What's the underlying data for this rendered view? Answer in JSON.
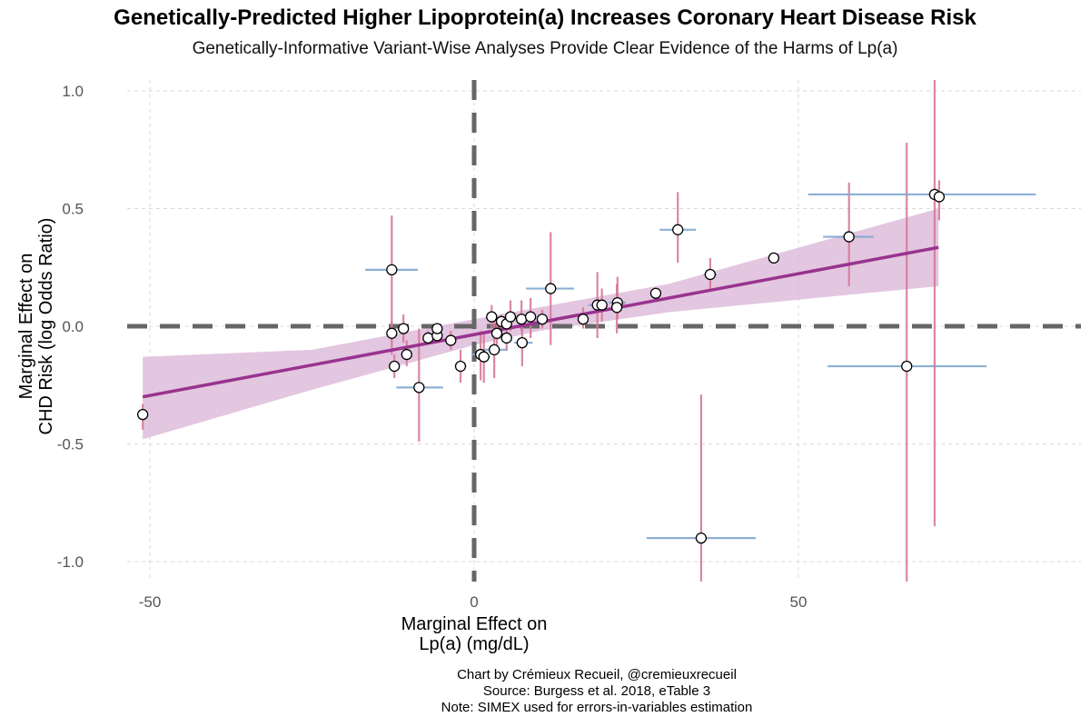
{
  "chart_data": {
    "type": "scatter",
    "title": "Genetically-Predicted Higher Lipoprotein(a) Increases Coronary Heart Disease Risk",
    "subtitle": "Genetically-Informative Variant-Wise Analyses Provide Clear Evidence of the Harms of Lp(a)",
    "xlabel": [
      "Marginal Effect on",
      "Lp(a) (mg/dL)"
    ],
    "ylabel": [
      "Marginal Effect on",
      "CHD Risk (log Odds Ratio)"
    ],
    "caption": [
      "Chart by Crémieux Recueil, @cremieuxrecueil",
      "Source: Burgess et al. 2018, eTable 3",
      "Note: SIMEX used for errors-in-variables estimation"
    ],
    "xlim": [
      -52,
      93
    ],
    "ylim": [
      -1.1,
      1.05
    ],
    "xticks": [
      -50,
      0,
      50
    ],
    "xtick_labels": [
      "-50",
      "0",
      "50"
    ],
    "yticks": [
      1.0,
      0.5,
      0.0,
      -0.5,
      -1.0
    ],
    "ytick_labels": [
      "1.0",
      "0.5",
      "0.0",
      "-0.5",
      "-1.0"
    ],
    "grid": true,
    "reference_lines": {
      "x": 0,
      "y": 0
    },
    "colors": {
      "point_fill": "#ffffff",
      "point_stroke": "#000000",
      "y_error": "#d67a9b",
      "x_error": "#7fa8d0",
      "fit_line": "#99338f",
      "ci_band": "#d9b3d6",
      "ref_line": "#666666",
      "grid": "#d9d9d9"
    },
    "fit": {
      "x": [
        -51.1,
        71.6
      ],
      "y": [
        -0.3,
        0.335
      ]
    },
    "ci_band": {
      "x": [
        -51.1,
        -25,
        0,
        10,
        30,
        71.6
      ],
      "lower": [
        -0.48,
        -0.27,
        -0.08,
        -0.02,
        0.06,
        0.17
      ],
      "upper": [
        -0.13,
        -0.1,
        0.03,
        0.08,
        0.18,
        0.5
      ]
    },
    "points": [
      {
        "x": -51.1,
        "y": -0.375,
        "ylo": -0.44,
        "yhi": -0.33,
        "xlo": -51.6,
        "xhi": -50.6
      },
      {
        "x": -12.7,
        "y": 0.24,
        "ylo": -0.12,
        "yhi": 0.47,
        "xlo": -16.8,
        "xhi": -8.7
      },
      {
        "x": -12.7,
        "y": -0.03,
        "ylo": -0.07,
        "yhi": 0.02,
        "xlo": -13.5,
        "xhi": -11.9
      },
      {
        "x": -12.3,
        "y": -0.17,
        "ylo": -0.22,
        "yhi": -0.12,
        "xlo": -13.0,
        "xhi": -11.6
      },
      {
        "x": -10.9,
        "y": -0.01,
        "ylo": -0.07,
        "yhi": 0.05,
        "xlo": -11.5,
        "xhi": -10.3
      },
      {
        "x": -10.4,
        "y": -0.12,
        "ylo": -0.17,
        "yhi": -0.06,
        "xlo": -10.9,
        "xhi": -9.9
      },
      {
        "x": -8.5,
        "y": -0.26,
        "ylo": -0.49,
        "yhi": -0.01,
        "xlo": -12.0,
        "xhi": -4.8
      },
      {
        "x": -7.1,
        "y": -0.05,
        "ylo": -0.08,
        "yhi": -0.02,
        "xlo": -7.5,
        "xhi": -6.7
      },
      {
        "x": -5.7,
        "y": -0.04,
        "ylo": -0.07,
        "yhi": -0.01,
        "xlo": -6.1,
        "xhi": -5.3
      },
      {
        "x": -5.7,
        "y": -0.01,
        "ylo": -0.03,
        "yhi": 0.01,
        "xlo": -6.1,
        "xhi": -5.3
      },
      {
        "x": -3.6,
        "y": -0.06,
        "ylo": -0.1,
        "yhi": -0.02,
        "xlo": -4.0,
        "xhi": -3.2
      },
      {
        "x": -2.1,
        "y": -0.17,
        "ylo": -0.24,
        "yhi": -0.1,
        "xlo": -3.0,
        "xhi": -1.2
      },
      {
        "x": 1.0,
        "y": -0.12,
        "ylo": -0.23,
        "yhi": -0.02,
        "xlo": -0.4,
        "xhi": 2.0
      },
      {
        "x": 1.5,
        "y": -0.13,
        "ylo": -0.24,
        "yhi": -0.03,
        "xlo": 0.8,
        "xhi": 2.5
      },
      {
        "x": 3.1,
        "y": -0.1,
        "ylo": -0.22,
        "yhi": 0.02,
        "xlo": 1.5,
        "xhi": 5.2
      },
      {
        "x": 2.7,
        "y": 0.04,
        "ylo": -0.01,
        "yhi": 0.09,
        "xlo": 2.3,
        "xhi": 3.1
      },
      {
        "x": 3.5,
        "y": -0.03,
        "ylo": -0.08,
        "yhi": 0.02,
        "xlo": 3.1,
        "xhi": 3.9
      },
      {
        "x": 4.2,
        "y": 0.02,
        "ylo": -0.02,
        "yhi": 0.05,
        "xlo": 3.6,
        "xhi": 4.8
      },
      {
        "x": 5.0,
        "y": 0.01,
        "ylo": -0.03,
        "yhi": 0.05,
        "xlo": 4.5,
        "xhi": 5.5
      },
      {
        "x": 5.0,
        "y": -0.05,
        "ylo": -0.1,
        "yhi": 0.0,
        "xlo": 4.5,
        "xhi": 5.5
      },
      {
        "x": 5.6,
        "y": 0.04,
        "ylo": -0.02,
        "yhi": 0.11,
        "xlo": 5.0,
        "xhi": 6.2
      },
      {
        "x": 7.3,
        "y": 0.03,
        "ylo": -0.02,
        "yhi": 0.11,
        "xlo": 6.6,
        "xhi": 8.0
      },
      {
        "x": 7.4,
        "y": -0.07,
        "ylo": -0.17,
        "yhi": 0.03,
        "xlo": 6.2,
        "xhi": 9.0
      },
      {
        "x": 8.7,
        "y": 0.04,
        "ylo": -0.05,
        "yhi": 0.12,
        "xlo": 8.0,
        "xhi": 9.6
      },
      {
        "x": 10.5,
        "y": 0.03,
        "ylo": -0.01,
        "yhi": 0.07,
        "xlo": 10.0,
        "xhi": 11.0
      },
      {
        "x": 11.8,
        "y": 0.16,
        "ylo": -0.08,
        "yhi": 0.4,
        "xlo": 8.0,
        "xhi": 15.4
      },
      {
        "x": 16.8,
        "y": 0.03,
        "ylo": -0.01,
        "yhi": 0.08,
        "xlo": 16.2,
        "xhi": 17.4
      },
      {
        "x": 19.0,
        "y": 0.09,
        "ylo": -0.05,
        "yhi": 0.23,
        "xlo": 17.6,
        "xhi": 20.4
      },
      {
        "x": 19.7,
        "y": 0.09,
        "ylo": 0.02,
        "yhi": 0.16,
        "xlo": 19.2,
        "xhi": 20.2
      },
      {
        "x": 22.1,
        "y": 0.1,
        "ylo": 0.03,
        "yhi": 0.21,
        "xlo": 20.8,
        "xhi": 23.4
      },
      {
        "x": 22.0,
        "y": 0.08,
        "ylo": -0.03,
        "yhi": 0.18,
        "xlo": 21.4,
        "xhi": 22.6
      },
      {
        "x": 28.0,
        "y": 0.14,
        "ylo": 0.12,
        "yhi": 0.16,
        "xlo": 27.6,
        "xhi": 28.4
      },
      {
        "x": 31.4,
        "y": 0.41,
        "ylo": 0.27,
        "yhi": 0.57,
        "xlo": 28.6,
        "xhi": 34.2
      },
      {
        "x": 36.4,
        "y": 0.22,
        "ylo": 0.15,
        "yhi": 0.29,
        "xlo": 35.4,
        "xhi": 37.4
      },
      {
        "x": 46.2,
        "y": 0.29,
        "ylo": 0.27,
        "yhi": 0.31,
        "xlo": 45.8,
        "xhi": 46.6
      },
      {
        "x": 57.8,
        "y": 0.38,
        "ylo": 0.17,
        "yhi": 0.61,
        "xlo": 53.8,
        "xhi": 61.6
      },
      {
        "x": 66.7,
        "y": -0.17,
        "ylo": -1.1,
        "yhi": 0.78,
        "xlo": 54.5,
        "xhi": 79.0
      },
      {
        "x": 71.0,
        "y": 0.56,
        "ylo": -0.85,
        "yhi": 1.1,
        "xlo": 51.5,
        "xhi": 86.6
      },
      {
        "x": 71.7,
        "y": 0.55,
        "ylo": 0.45,
        "yhi": 0.62,
        "xlo": 71.2,
        "xhi": 72.2
      },
      {
        "x": 35.0,
        "y": -0.9,
        "ylo": -1.1,
        "yhi": -0.29,
        "xlo": 26.6,
        "xhi": 43.4
      }
    ]
  }
}
